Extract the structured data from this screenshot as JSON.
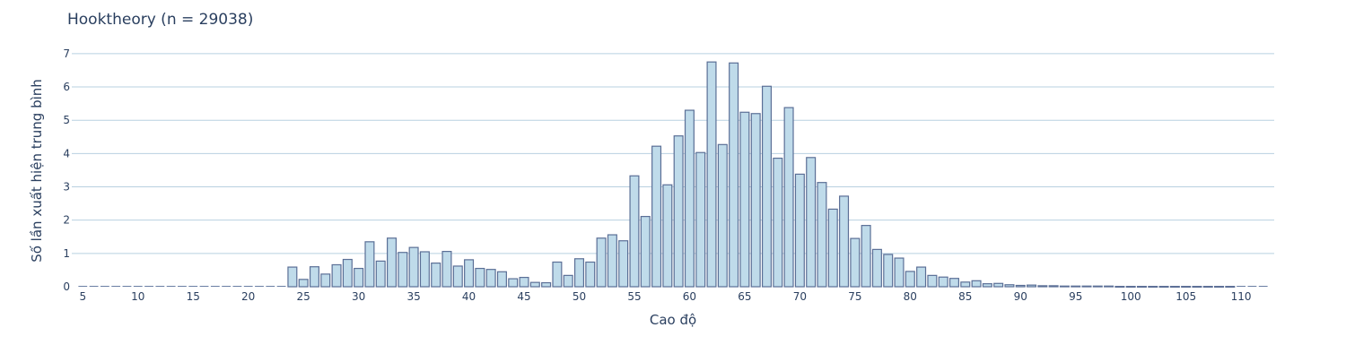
{
  "chart_data": {
    "type": "bar",
    "title": "Hooktheory (n = 29038)",
    "xlabel": "Cao độ",
    "ylabel": "Số lần xuất hiện trung bình",
    "xlim": [
      4,
      113
    ],
    "ylim": [
      0,
      7.4
    ],
    "xticks": [
      5,
      10,
      15,
      20,
      25,
      30,
      35,
      40,
      45,
      50,
      55,
      60,
      65,
      70,
      75,
      80,
      85,
      90,
      95,
      100,
      105,
      110
    ],
    "yticks": [
      0,
      1,
      2,
      3,
      4,
      5,
      6,
      7
    ],
    "grid": true,
    "colors": {
      "bar_fill": "#bfdbea",
      "bar_edge": "#5b6f96",
      "grid": "#b8d0e0",
      "text": "#2a3f5f"
    },
    "x": [
      5,
      6,
      7,
      8,
      9,
      10,
      11,
      12,
      13,
      14,
      15,
      16,
      17,
      18,
      19,
      20,
      21,
      22,
      23,
      24,
      25,
      26,
      27,
      28,
      29,
      30,
      31,
      32,
      33,
      34,
      35,
      36,
      37,
      38,
      39,
      40,
      41,
      42,
      43,
      44,
      45,
      46,
      47,
      48,
      49,
      50,
      51,
      52,
      53,
      54,
      55,
      56,
      57,
      58,
      59,
      60,
      61,
      62,
      63,
      64,
      65,
      66,
      67,
      68,
      69,
      70,
      71,
      72,
      73,
      74,
      75,
      76,
      77,
      78,
      79,
      80,
      81,
      82,
      83,
      84,
      85,
      86,
      87,
      88,
      89,
      90,
      91,
      92,
      93,
      94,
      95,
      96,
      97,
      98,
      99,
      100,
      101,
      102,
      103,
      104,
      105,
      106,
      107,
      108,
      109,
      110,
      111,
      112
    ],
    "values": [
      0.0,
      0,
      0.0,
      0,
      0.0,
      0.0,
      0,
      0.0,
      0,
      0.0,
      0.0,
      0.0,
      0,
      0,
      0,
      0,
      0.0,
      0.0,
      0.0,
      0.59,
      0.22,
      0.6,
      0.38,
      0.66,
      0.82,
      0.55,
      1.35,
      0.77,
      1.46,
      1.03,
      1.18,
      1.05,
      0.71,
      1.06,
      0.62,
      0.81,
      0.55,
      0.52,
      0.45,
      0.24,
      0.28,
      0.13,
      0.12,
      0.74,
      0.34,
      0.84,
      0.74,
      1.46,
      1.56,
      1.38,
      3.33,
      2.11,
      4.22,
      3.06,
      4.53,
      5.3,
      4.03,
      6.75,
      4.27,
      6.72,
      5.24,
      5.2,
      6.02,
      3.86,
      5.38,
      3.38,
      3.88,
      3.13,
      2.33,
      2.72,
      1.45,
      1.84,
      1.12,
      0.97,
      0.86,
      0.46,
      0.59,
      0.34,
      0.29,
      0.25,
      0.14,
      0.18,
      0.09,
      0.1,
      0.06,
      0.04,
      0.05,
      0.03,
      0.03,
      0.02,
      0.02,
      0.02,
      0.02,
      0.02,
      0.01,
      0.01,
      0.01,
      0.01,
      0.01,
      0.01,
      0.01,
      0.01,
      0.01,
      0.01,
      0.01,
      0,
      0,
      0.0
    ]
  }
}
